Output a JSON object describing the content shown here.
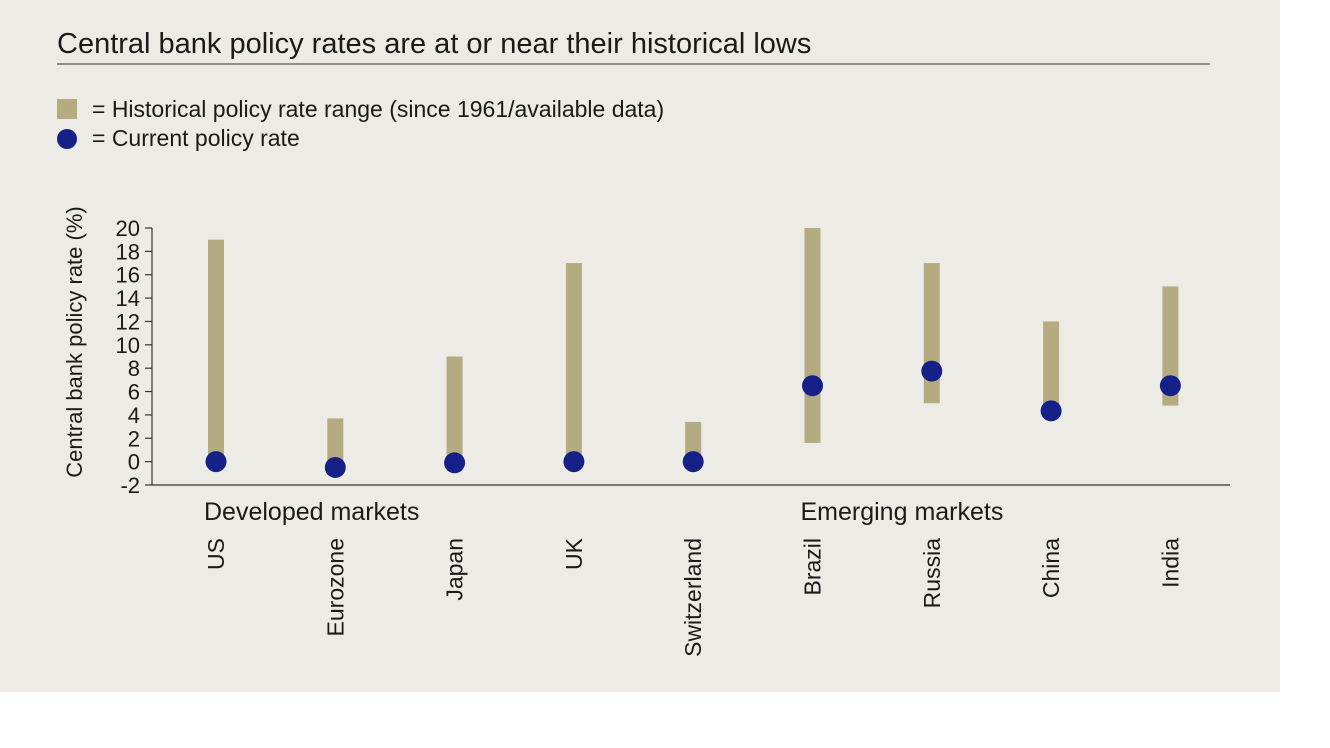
{
  "chart_data": {
    "type": "range-dot",
    "title": "Central bank policy rates are at or near their historical lows",
    "legend": {
      "range_label": "= Historical policy rate range (since 1961/available data)",
      "current_label": "= Current policy rate"
    },
    "ylabel": "Central bank policy rate (%)",
    "ylim": [
      -2,
      20
    ],
    "yticks": [
      "20",
      "18",
      "16",
      "14",
      "12",
      "10",
      "8",
      "6",
      "4",
      "2",
      "0",
      "-2"
    ],
    "groups": [
      {
        "label": "Developed markets",
        "start_index": 0
      },
      {
        "label": "Emerging markets",
        "start_index": 5
      }
    ],
    "categories": [
      "US",
      "Eurozone",
      "Japan",
      "UK",
      "Switzerland",
      "Brazil",
      "Russia",
      "China",
      "India"
    ],
    "series": [
      {
        "name": "Historical range low",
        "values": [
          0,
          0,
          0,
          0,
          0,
          1.6,
          5,
          4.3,
          4.8
        ]
      },
      {
        "name": "Historical range high",
        "values": [
          19,
          3.7,
          9,
          17,
          3.4,
          20,
          17,
          12,
          15
        ]
      },
      {
        "name": "Current policy rate",
        "values": [
          0,
          -0.5,
          -0.1,
          0,
          0,
          6.5,
          7.75,
          4.35,
          6.5
        ]
      }
    ],
    "colors": {
      "range": "#b4ab80",
      "current": "#152187",
      "panel": "#ecebe5",
      "axis": "#333333"
    }
  }
}
